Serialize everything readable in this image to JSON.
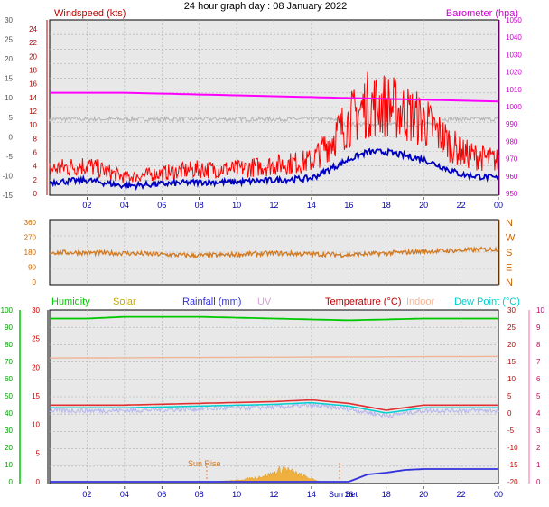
{
  "title": "24 hour graph day : 08 January 2022",
  "time_ticks": [
    "02",
    "04",
    "06",
    "08",
    "10",
    "12",
    "14",
    "16",
    "18",
    "20",
    "22",
    "00"
  ],
  "colors": {
    "wind": "#ff0000",
    "wind_avg": "#0000c0",
    "baro": "#ff00ff",
    "temp_grey": "#b4b4b4",
    "direction": "#d2781e",
    "humidity": "#00c800",
    "solar": "#c8aa00",
    "rain": "#3232dc",
    "uv": "#d8a0d8",
    "temperature": "#c00000",
    "indoor": "#f0b496",
    "dewpoint": "#00d0d0",
    "grid": "#b0b0b0",
    "plot_bg": "#e8e8e8"
  },
  "panel1": {
    "left_label": "Windspeed (kts)",
    "right_label": "Barometer (hpa)",
    "left_outer_ticks": [
      "30",
      "25",
      "20",
      "15",
      "10",
      "5",
      "0",
      "-5",
      "-10",
      "-15"
    ],
    "left_inner_ticks": [
      "24",
      "22",
      "20",
      "18",
      "16",
      "14",
      "12",
      "10",
      "8",
      "6",
      "4",
      "2",
      "0"
    ],
    "right_ticks": [
      "1050",
      "1040",
      "1030",
      "1020",
      "1010",
      "1000",
      "990",
      "980",
      "970",
      "960",
      "950"
    ]
  },
  "panel2": {
    "left_ticks": [
      "360",
      "270",
      "180",
      "90",
      "0"
    ],
    "right_ticks": [
      "N",
      "W",
      "S",
      "E",
      "N"
    ]
  },
  "panel3": {
    "legend": [
      "Humidity",
      "Solar",
      "Rainfall (mm)",
      "UV",
      "Temperature (°C)",
      "Indoor",
      "Dew Point (°C)"
    ],
    "left_ticks_humidity": [
      "100",
      "90",
      "80",
      "70",
      "60",
      "50",
      "40",
      "30",
      "20",
      "10",
      "0"
    ],
    "left_ticks_temp": [
      "30",
      "25",
      "20",
      "15",
      "10",
      "5",
      "0"
    ],
    "right_ticks_temp": [
      "30",
      "25",
      "20",
      "15",
      "10",
      "5",
      "0",
      "-5",
      "-10",
      "-15",
      "-20"
    ],
    "right_ticks_uv": [
      "10",
      "9",
      "8",
      "7",
      "6",
      "5",
      "4",
      "3",
      "2",
      "1",
      "0"
    ],
    "sun_rise": "Sun Rise",
    "sun_set": "Sun Set"
  },
  "chart_data": [
    {
      "type": "line",
      "series": [
        {
          "name": "Windspeed (kts)",
          "x": [
            "00:00",
            "02:00",
            "04:00",
            "06:00",
            "08:00",
            "10:00",
            "12:00",
            "14:00",
            "16:00",
            "17:00",
            "18:00",
            "20:00",
            "22:00",
            "24:00"
          ],
          "values": [
            3,
            3.5,
            2,
            2.5,
            3,
            3,
            3.5,
            4,
            9,
            11,
            11,
            9,
            5,
            4
          ]
        },
        {
          "name": "Barometer (hpa)",
          "x": [
            "00:00",
            "04:00",
            "08:00",
            "12:00",
            "16:00",
            "20:00",
            "24:00"
          ],
          "values": [
            1008,
            1008,
            1007,
            1006,
            1005,
            1004,
            1003
          ]
        }
      ],
      "xlabel": "",
      "ylabel": "Windspeed (kts)",
      "ylim": [
        0,
        25
      ],
      "y2lim": [
        950,
        1050
      ],
      "grid": true
    },
    {
      "type": "line",
      "series": [
        {
          "x": [
            "00:00",
            "04:00",
            "08:00",
            "12:00",
            "16:00",
            "20:00",
            "24:00"
          ],
          "values": [
            195,
            190,
            175,
            190,
            180,
            200,
            215
          ]
        }
      ],
      "ylim": [
        0,
        360
      ],
      "grid": true
    },
    {
      "type": "line",
      "series": [
        {
          "name": "Humidity",
          "x": [
            "00:00",
            "02:00",
            "04:00",
            "08:00",
            "12:00",
            "16:00",
            "20:00",
            "24:00"
          ],
          "values": [
            95,
            95,
            96,
            96,
            95,
            94,
            95,
            95
          ]
        },
        {
          "name": "Temperature (°C)",
          "x": [
            "00:00",
            "04:00",
            "08:00",
            "12:00",
            "14:00",
            "16:00",
            "18:00",
            "20:00",
            "24:00"
          ],
          "values": [
            2,
            2,
            2.5,
            3,
            3.5,
            2.5,
            0.5,
            2,
            2
          ]
        },
        {
          "name": "Dew Point (°C)",
          "x": [
            "00:00",
            "04:00",
            "08:00",
            "12:00",
            "14:00",
            "16:00",
            "18:00",
            "20:00",
            "24:00"
          ],
          "values": [
            1.5,
            1.5,
            2,
            2.5,
            3,
            2,
            0,
            1.5,
            1.5
          ]
        },
        {
          "name": "Indoor",
          "x": [
            "00:00",
            "24:00"
          ],
          "values": [
            16,
            16.5
          ]
        },
        {
          "name": "Rainfall (mm)",
          "x": [
            "00:00",
            "16:00",
            "17:00",
            "18:00",
            "19:00",
            "20:00",
            "24:00"
          ],
          "values": [
            0,
            0,
            0.8,
            1.0,
            1.3,
            1.4,
            1.4
          ]
        },
        {
          "name": "Solar",
          "x": [
            "08:30",
            "10:00",
            "11:00",
            "12:00",
            "12:30",
            "13:00",
            "14:00",
            "14:30"
          ],
          "values": [
            0,
            1,
            3,
            6,
            10,
            7,
            2,
            0
          ]
        }
      ],
      "ylim": [
        -20,
        30
      ],
      "grid": true
    }
  ]
}
